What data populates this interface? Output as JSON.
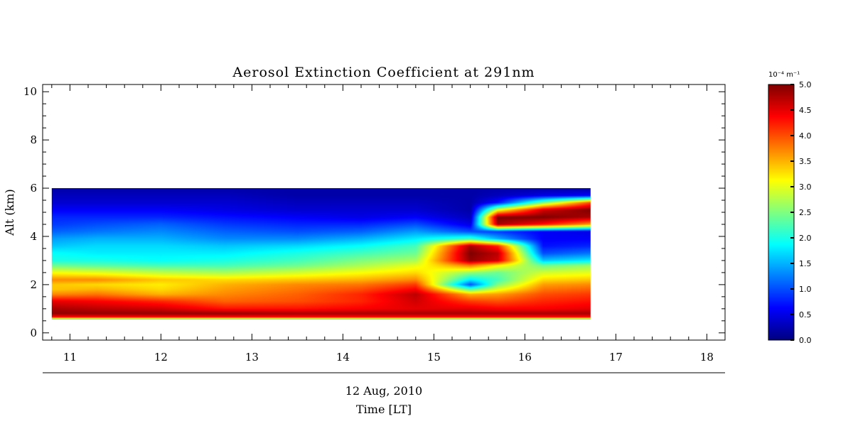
{
  "chart_data": {
    "type": "heatmap",
    "title": "Aerosol Extinction Coefficient at 291nm",
    "xlabel": "Time [LT]",
    "xlabel_date": "12 Aug, 2010",
    "ylabel": "Alt (km)",
    "xlim": [
      10.7,
      18.2
    ],
    "ylim": [
      -0.3,
      10.3
    ],
    "xticks": [
      "11",
      "12",
      "13",
      "14",
      "15",
      "16",
      "17",
      "18"
    ],
    "yticks": [
      "0",
      "2",
      "4",
      "6",
      "8",
      "10"
    ],
    "data_extent": {
      "x": [
        10.8,
        16.72
      ],
      "y": [
        0.55,
        6.0
      ]
    },
    "colorscale": "jet",
    "colorbar": {
      "unit": "10⁻⁴ m⁻¹",
      "range": [
        0.0,
        5.0
      ],
      "ticks": [
        "0.0",
        "0.5",
        "1.0",
        "1.5",
        "2.0",
        "2.5",
        "3.0",
        "3.5",
        "4.0",
        "4.5",
        "5.0"
      ]
    },
    "profile_altitudes_km": [
      0.55,
      0.65,
      0.8,
      1.0,
      1.3,
      1.6,
      1.8,
      2.0,
      2.2,
      2.5,
      2.8,
      3.0,
      3.3,
      3.6,
      3.9,
      4.2,
      4.5,
      4.8,
      5.1,
      5.4,
      5.7,
      6.0
    ],
    "profiles": [
      {
        "time": 10.8,
        "values": [
          1.8,
          4.3,
          4.9,
          4.8,
          4.5,
          3.7,
          3.4,
          3.4,
          3.7,
          3.1,
          2.4,
          2.0,
          1.9,
          1.6,
          1.4,
          1.1,
          0.9,
          0.8,
          0.6,
          0.4,
          0.3,
          0.2
        ]
      },
      {
        "time": 11.3,
        "values": [
          1.8,
          4.3,
          4.9,
          4.7,
          4.4,
          3.8,
          3.5,
          3.3,
          3.7,
          3.0,
          2.3,
          2.0,
          1.8,
          1.7,
          1.5,
          1.2,
          1.0,
          0.8,
          0.6,
          0.4,
          0.3,
          0.2
        ]
      },
      {
        "time": 12.0,
        "values": [
          1.8,
          4.3,
          4.9,
          4.6,
          4.2,
          3.5,
          3.3,
          3.2,
          3.4,
          2.8,
          2.2,
          1.9,
          1.8,
          1.7,
          1.5,
          1.3,
          1.1,
          0.8,
          0.6,
          0.4,
          0.3,
          0.2
        ]
      },
      {
        "time": 12.7,
        "values": [
          1.8,
          4.3,
          4.9,
          4.3,
          3.9,
          3.7,
          3.6,
          3.5,
          3.3,
          2.7,
          2.2,
          2.0,
          1.8,
          1.6,
          1.3,
          1.1,
          0.9,
          0.7,
          0.5,
          0.4,
          0.3,
          0.2
        ]
      },
      {
        "time": 13.5,
        "values": [
          1.8,
          4.3,
          4.8,
          4.3,
          4.0,
          3.9,
          3.8,
          3.7,
          3.4,
          2.9,
          2.4,
          2.2,
          2.0,
          1.7,
          1.3,
          1.0,
          0.8,
          0.6,
          0.4,
          0.3,
          0.2,
          0.2
        ]
      },
      {
        "time": 14.2,
        "values": [
          1.8,
          4.3,
          4.8,
          4.4,
          4.2,
          4.2,
          4.0,
          3.8,
          3.5,
          3.1,
          2.7,
          2.5,
          2.2,
          1.9,
          1.5,
          1.1,
          0.8,
          0.5,
          0.4,
          0.3,
          0.2,
          0.2
        ]
      },
      {
        "time": 14.8,
        "values": [
          1.8,
          4.3,
          4.8,
          4.5,
          4.6,
          4.7,
          4.4,
          4.1,
          3.7,
          3.3,
          3.0,
          2.7,
          2.4,
          2.2,
          1.8,
          1.4,
          1.0,
          0.6,
          0.4,
          0.3,
          0.2,
          0.2
        ]
      },
      {
        "time": 15.4,
        "values": [
          1.8,
          4.3,
          4.8,
          4.5,
          4.1,
          3.5,
          2.3,
          1.0,
          1.8,
          2.6,
          3.8,
          4.9,
          5.0,
          4.8,
          2.2,
          1.0,
          0.5,
          0.3,
          0.2,
          0.2,
          0.2,
          0.2
        ]
      },
      {
        "time": 15.7,
        "values": [
          1.8,
          4.3,
          4.8,
          4.4,
          4.0,
          3.6,
          3.0,
          2.5,
          2.2,
          2.4,
          3.2,
          4.6,
          4.7,
          4.2,
          1.5,
          0.9,
          4.8,
          5.0,
          3.0,
          0.7,
          0.3,
          0.2
        ]
      },
      {
        "time": 16.2,
        "values": [
          1.8,
          4.3,
          4.8,
          4.4,
          4.2,
          4.0,
          3.8,
          3.6,
          3.3,
          2.9,
          2.4,
          1.6,
          1.0,
          0.7,
          0.6,
          0.6,
          4.3,
          5.0,
          4.6,
          2.5,
          0.5,
          0.2
        ]
      },
      {
        "time": 16.72,
        "values": [
          1.8,
          4.3,
          4.8,
          4.5,
          4.3,
          4.1,
          3.9,
          3.7,
          3.4,
          3.0,
          2.6,
          1.8,
          1.2,
          0.8,
          0.6,
          0.5,
          3.6,
          4.8,
          5.0,
          4.0,
          0.6,
          0.2
        ]
      }
    ]
  }
}
